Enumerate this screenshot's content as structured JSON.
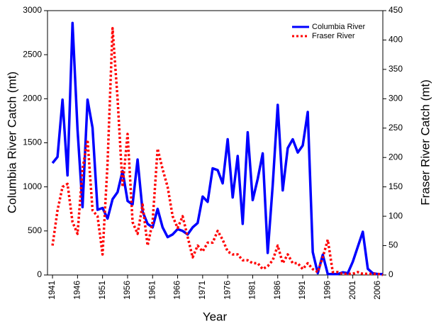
{
  "chart_data": {
    "type": "line",
    "x": [
      1941,
      1942,
      1943,
      1944,
      1945,
      1946,
      1947,
      1948,
      1949,
      1950,
      1951,
      1952,
      1953,
      1954,
      1955,
      1956,
      1957,
      1958,
      1959,
      1960,
      1961,
      1962,
      1963,
      1964,
      1965,
      1966,
      1967,
      1968,
      1969,
      1970,
      1971,
      1972,
      1973,
      1974,
      1975,
      1976,
      1977,
      1978,
      1979,
      1980,
      1981,
      1982,
      1983,
      1984,
      1985,
      1986,
      1987,
      1988,
      1989,
      1990,
      1991,
      1992,
      1993,
      1994,
      1995,
      1996,
      1997,
      1998,
      1999,
      2000,
      2001,
      2002,
      2003,
      2004,
      2005,
      2006,
      2007
    ],
    "series": [
      {
        "name": "Columbia River",
        "color": "#0000ff",
        "axis": "y",
        "values": [
          1270,
          1340,
          1990,
          1130,
          2860,
          1650,
          770,
          1990,
          1670,
          740,
          760,
          640,
          860,
          940,
          1180,
          840,
          800,
          1310,
          720,
          580,
          540,
          750,
          540,
          430,
          460,
          520,
          500,
          460,
          540,
          590,
          890,
          830,
          1210,
          1190,
          1040,
          1540,
          880,
          1350,
          580,
          1620,
          850,
          1090,
          1380,
          250,
          1020,
          1930,
          960,
          1440,
          1540,
          1390,
          1470,
          1850,
          260,
          20,
          230,
          10,
          10,
          10,
          30,
          20,
          150,
          320,
          490,
          70,
          20,
          10,
          10
        ]
      },
      {
        "name": "Fraser River",
        "color": "#ff0000",
        "axis": "y2",
        "values": [
          50,
          110,
          150,
          155,
          90,
          70,
          180,
          230,
          110,
          100,
          35,
          190,
          420,
          300,
          150,
          240,
          90,
          70,
          120,
          50,
          90,
          215,
          180,
          150,
          100,
          80,
          100,
          65,
          30,
          50,
          40,
          55,
          55,
          75,
          60,
          40,
          35,
          35,
          25,
          25,
          20,
          20,
          10,
          15,
          25,
          50,
          20,
          35,
          20,
          20,
          10,
          20,
          10,
          5,
          30,
          60,
          5,
          5,
          2,
          2,
          2,
          5,
          2,
          2,
          2,
          2,
          0
        ]
      }
    ],
    "xlabel": "Year",
    "ylabel": "Columbia River Catch (mt)",
    "y2label": "Fraser River Catch (mt)",
    "xlim": [
      1940,
      2007
    ],
    "xticks": [
      1941,
      1946,
      1951,
      1956,
      1961,
      1966,
      1971,
      1976,
      1981,
      1986,
      1991,
      1996,
      2001,
      2006
    ],
    "ylim": [
      0,
      3000
    ],
    "yticks": [
      0,
      500,
      1000,
      1500,
      2000,
      2500,
      3000
    ],
    "y2lim": [
      0,
      450
    ],
    "y2ticks": [
      0,
      50,
      100,
      150,
      200,
      250,
      300,
      350,
      400,
      450
    ],
    "legend": "top-right"
  }
}
